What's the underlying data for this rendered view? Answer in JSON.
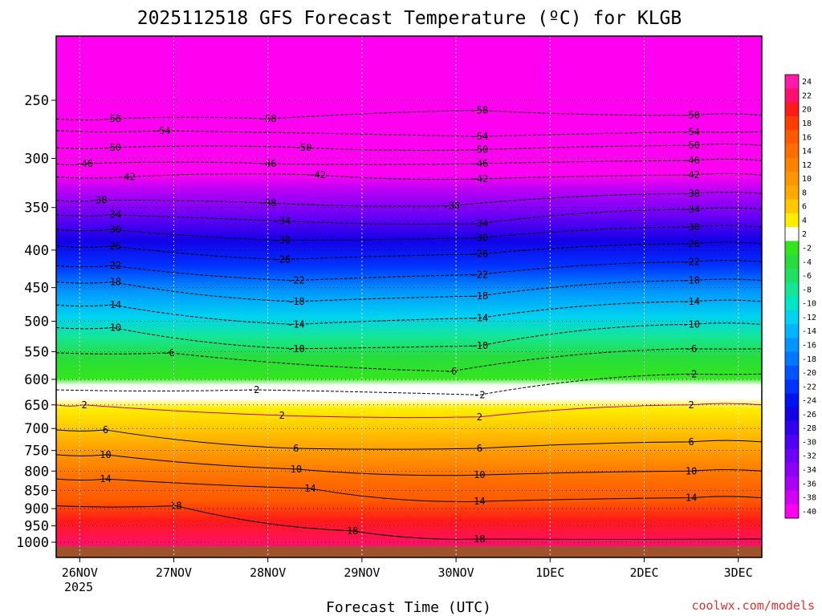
{
  "chart_data": {
    "type": "heatmap",
    "title": "2025112518 GFS Forecast Temperature (ºC) for KLGB",
    "xlabel": "Forecast Time (UTC)",
    "ylabel": "",
    "credit": "coolwx.com/models",
    "x_ticks": [
      "26NOV",
      "27NOV",
      "28NOV",
      "29NOV",
      "30NOV",
      "1DEC",
      "2DEC",
      "3DEC"
    ],
    "x_year_label": "2025",
    "x_range": [
      "2025-11-25T18:00Z",
      "2025-12-03T06:00Z"
    ],
    "y_ticks": [
      250,
      300,
      350,
      400,
      450,
      500,
      550,
      600,
      650,
      700,
      750,
      800,
      850,
      900,
      950,
      1000
    ],
    "y_unit": "hPa",
    "y_scale": "log-pressure",
    "colorbar": {
      "labels": [
        24,
        22,
        20,
        18,
        16,
        14,
        12,
        10,
        8,
        6,
        4,
        2,
        -2,
        -4,
        -6,
        -8,
        -10,
        -12,
        -14,
        -16,
        -18,
        -20,
        -22,
        -24,
        -26,
        -28,
        -30,
        -32,
        -34,
        -36,
        -38,
        -40
      ],
      "colors": [
        "#ff1aa8",
        "#ff0f6e",
        "#ff1a1a",
        "#ff3d00",
        "#ff5a00",
        "#ff6e00",
        "#ff8200",
        "#ff9600",
        "#ffaa00",
        "#ffc800",
        "#ffee00",
        "#ffffff",
        "#32e61e",
        "#28dc3c",
        "#1ee164",
        "#14e696",
        "#00e6c8",
        "#00d2f0",
        "#00b4ff",
        "#0096ff",
        "#0078ff",
        "#0055ff",
        "#0032ff",
        "#0014f0",
        "#1400e6",
        "#3200f0",
        "#5000f5",
        "#6e00f5",
        "#8c00f5",
        "#aa00f5",
        "#d200f5",
        "#ff00f0"
      ]
    },
    "series": [
      {
        "name": "-58",
        "values": [
          [
            0.08,
            265
          ],
          [
            0.3,
            265
          ],
          [
            0.6,
            258
          ],
          [
            0.9,
            262
          ]
        ]
      },
      {
        "name": "-54",
        "values": [
          [
            0.15,
            275
          ],
          [
            0.6,
            280
          ],
          [
            0.9,
            276
          ]
        ]
      },
      {
        "name": "-50",
        "values": [
          [
            0.08,
            290
          ],
          [
            0.35,
            290
          ],
          [
            0.6,
            292
          ],
          [
            0.9,
            288
          ]
        ]
      },
      {
        "name": "-46",
        "values": [
          [
            0.04,
            305
          ],
          [
            0.3,
            305
          ],
          [
            0.6,
            305
          ],
          [
            0.9,
            302
          ]
        ]
      },
      {
        "name": "-42",
        "values": [
          [
            0.1,
            318
          ],
          [
            0.37,
            316
          ],
          [
            0.6,
            320
          ],
          [
            0.9,
            316
          ]
        ]
      },
      {
        "name": "-38",
        "values": [
          [
            0.06,
            342
          ],
          [
            0.3,
            345
          ],
          [
            0.56,
            348
          ],
          [
            0.9,
            335
          ]
        ]
      },
      {
        "name": "-34",
        "values": [
          [
            0.08,
            358
          ],
          [
            0.32,
            365
          ],
          [
            0.6,
            368
          ],
          [
            0.9,
            352
          ]
        ]
      },
      {
        "name": "-30",
        "values": [
          [
            0.08,
            375
          ],
          [
            0.32,
            388
          ],
          [
            0.6,
            385
          ],
          [
            0.9,
            372
          ]
        ]
      },
      {
        "name": "-26",
        "values": [
          [
            0.08,
            395
          ],
          [
            0.32,
            412
          ],
          [
            0.6,
            405
          ],
          [
            0.9,
            392
          ]
        ]
      },
      {
        "name": "-22",
        "values": [
          [
            0.08,
            420
          ],
          [
            0.34,
            440
          ],
          [
            0.6,
            432
          ],
          [
            0.9,
            415
          ]
        ]
      },
      {
        "name": "-18",
        "values": [
          [
            0.08,
            442
          ],
          [
            0.34,
            470
          ],
          [
            0.6,
            462
          ],
          [
            0.9,
            440
          ]
        ]
      },
      {
        "name": "-14",
        "values": [
          [
            0.08,
            475
          ],
          [
            0.34,
            505
          ],
          [
            0.6,
            495
          ],
          [
            0.9,
            470
          ]
        ]
      },
      {
        "name": "-10",
        "values": [
          [
            0.08,
            510
          ],
          [
            0.34,
            545
          ],
          [
            0.6,
            540
          ],
          [
            0.9,
            505
          ]
        ]
      },
      {
        "name": "-6",
        "values": [
          [
            0.16,
            552
          ],
          [
            0.56,
            585
          ],
          [
            0.9,
            545
          ]
        ]
      },
      {
        "name": "-2",
        "values": [
          [
            0.28,
            620
          ],
          [
            0.6,
            630
          ],
          [
            0.9,
            590
          ]
        ]
      },
      {
        "name": "2",
        "values": [
          [
            0.04,
            650
          ],
          [
            0.32,
            672
          ],
          [
            0.6,
            675
          ],
          [
            0.9,
            650
          ]
        ]
      },
      {
        "name": "6",
        "values": [
          [
            0.07,
            703
          ],
          [
            0.34,
            745
          ],
          [
            0.6,
            745
          ],
          [
            0.9,
            730
          ]
        ]
      },
      {
        "name": "10",
        "values": [
          [
            0.07,
            760
          ],
          [
            0.34,
            795
          ],
          [
            0.6,
            810
          ],
          [
            0.9,
            800
          ]
        ]
      },
      {
        "name": "14",
        "values": [
          [
            0.07,
            820
          ],
          [
            0.36,
            845
          ],
          [
            0.6,
            880
          ],
          [
            0.9,
            870
          ]
        ]
      },
      {
        "name": "18",
        "values": [
          [
            0.17,
            892
          ],
          [
            0.42,
            965
          ],
          [
            0.6,
            990
          ]
        ]
      }
    ]
  }
}
